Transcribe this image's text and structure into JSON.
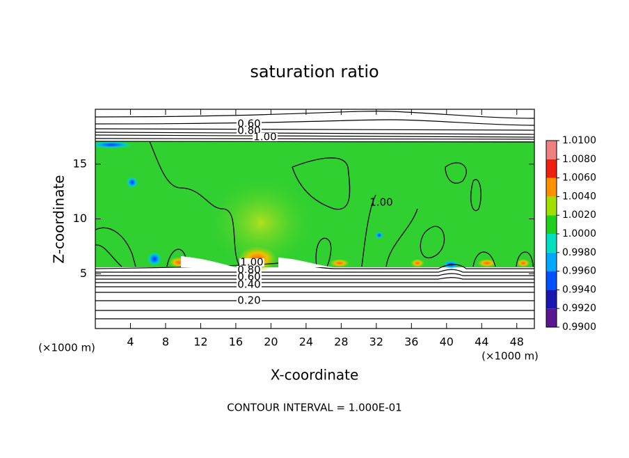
{
  "chart_data": {
    "type": "contour",
    "title": "saturation ratio",
    "x_label": "X-coordinate",
    "y_label": "Z-coordinate",
    "x_unit_label": "(×1000 m)",
    "footnote": "CONTOUR INTERVAL = 1.000E-01",
    "xlim": [
      0,
      50
    ],
    "ylim": [
      0,
      20
    ],
    "xticks": [
      4,
      8,
      12,
      16,
      20,
      24,
      28,
      32,
      36,
      40,
      44,
      48
    ],
    "yticks": [
      5,
      10,
      15
    ],
    "colorbar": {
      "lim": [
        0.99,
        1.01
      ],
      "ticks": [
        {
          "value": 0.99,
          "label": "0.9900"
        },
        {
          "value": 0.992,
          "label": "0.9920"
        },
        {
          "value": 0.994,
          "label": "0.9940"
        },
        {
          "value": 0.996,
          "label": "0.9960"
        },
        {
          "value": 0.998,
          "label": "0.9980"
        },
        {
          "value": 1.0,
          "label": "1.0000"
        },
        {
          "value": 1.002,
          "label": "1.0020"
        },
        {
          "value": 1.004,
          "label": "1.0040"
        },
        {
          "value": 1.006,
          "label": "1.0060"
        },
        {
          "value": 1.008,
          "label": "1.0080"
        },
        {
          "value": 1.01,
          "label": "1.0100"
        }
      ],
      "colors": [
        "#5a1890",
        "#1818b0",
        "#0050ff",
        "#00a8ff",
        "#00e0c0",
        "#20d020",
        "#a0e000",
        "#ff9000",
        "#f02010",
        "#f08080"
      ]
    },
    "contour_labels": [
      "0.60",
      "0.80",
      "1.00",
      "1.00",
      "1.00",
      "0.80",
      "0.60",
      "0.40",
      "0.20"
    ]
  }
}
